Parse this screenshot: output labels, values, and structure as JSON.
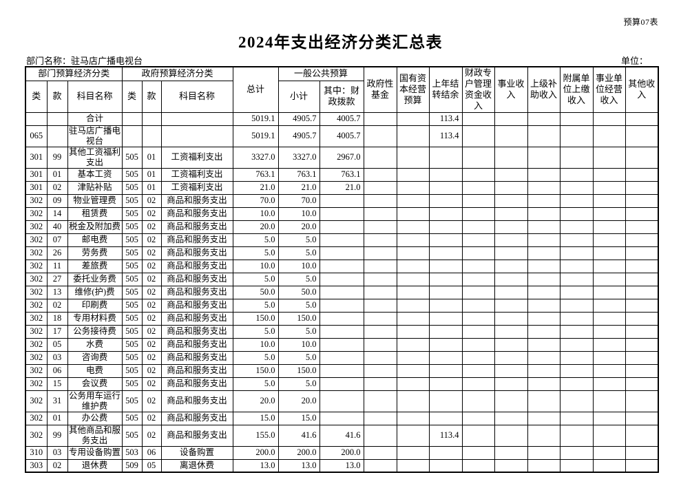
{
  "page": {
    "table_code": "预算07表",
    "title": "2024年支出经济分类汇总表",
    "department": "部门名称：驻马店广播电视台",
    "unit_label": "单位："
  },
  "table": {
    "group_headers": {
      "dept_class": "部门预算经济分类",
      "gov_class": "政府预算经济分类",
      "total": "总计",
      "general_public_budget": "一般公共预算"
    },
    "sub_headers": [
      "类",
      "款",
      "科目名称",
      "类",
      "款",
      "科目名称",
      "小计",
      "其中：财政拨款"
    ],
    "right_headers": [
      "政府性基金",
      "国有资本经营预算",
      "上年结转结余",
      "财政专户管理资金收入",
      "事业收入",
      "上级补助收入",
      "附属单位上缴收入",
      "事业单位经营收入",
      "其他收入"
    ],
    "rows": [
      [
        "",
        "",
        "合计",
        "",
        "",
        "",
        "5019.1",
        "4905.7",
        "4005.7",
        "",
        "",
        "113.4",
        "",
        "",
        "",
        "",
        "",
        ""
      ],
      [
        "065",
        "",
        "驻马店广播电视台",
        "",
        "",
        "",
        "5019.1",
        "4905.7",
        "4005.7",
        "",
        "",
        "113.4",
        "",
        "",
        "",
        "",
        "",
        ""
      ],
      [
        "301",
        "99",
        "其他工资福利支出",
        "505",
        "01",
        "工资福利支出",
        "3327.0",
        "3327.0",
        "2967.0",
        "",
        "",
        "",
        "",
        "",
        "",
        "",
        "",
        ""
      ],
      [
        "301",
        "01",
        "基本工资",
        "505",
        "01",
        "工资福利支出",
        "763.1",
        "763.1",
        "763.1",
        "",
        "",
        "",
        "",
        "",
        "",
        "",
        "",
        ""
      ],
      [
        "301",
        "02",
        "津贴补贴",
        "505",
        "01",
        "工资福利支出",
        "21.0",
        "21.0",
        "21.0",
        "",
        "",
        "",
        "",
        "",
        "",
        "",
        "",
        ""
      ],
      [
        "302",
        "09",
        "物业管理费",
        "505",
        "02",
        "商品和服务支出",
        "70.0",
        "70.0",
        "",
        "",
        "",
        "",
        "",
        "",
        "",
        "",
        "",
        ""
      ],
      [
        "302",
        "14",
        "租赁费",
        "505",
        "02",
        "商品和服务支出",
        "10.0",
        "10.0",
        "",
        "",
        "",
        "",
        "",
        "",
        "",
        "",
        "",
        ""
      ],
      [
        "302",
        "40",
        "税金及附加费",
        "505",
        "02",
        "商品和服务支出",
        "20.0",
        "20.0",
        "",
        "",
        "",
        "",
        "",
        "",
        "",
        "",
        "",
        ""
      ],
      [
        "302",
        "07",
        "邮电费",
        "505",
        "02",
        "商品和服务支出",
        "5.0",
        "5.0",
        "",
        "",
        "",
        "",
        "",
        "",
        "",
        "",
        "",
        ""
      ],
      [
        "302",
        "26",
        "劳务费",
        "505",
        "02",
        "商品和服务支出",
        "5.0",
        "5.0",
        "",
        "",
        "",
        "",
        "",
        "",
        "",
        "",
        "",
        ""
      ],
      [
        "302",
        "11",
        "差旅费",
        "505",
        "02",
        "商品和服务支出",
        "10.0",
        "10.0",
        "",
        "",
        "",
        "",
        "",
        "",
        "",
        "",
        "",
        ""
      ],
      [
        "302",
        "27",
        "委托业务费",
        "505",
        "02",
        "商品和服务支出",
        "5.0",
        "5.0",
        "",
        "",
        "",
        "",
        "",
        "",
        "",
        "",
        "",
        ""
      ],
      [
        "302",
        "13",
        "维修(护)费",
        "505",
        "02",
        "商品和服务支出",
        "50.0",
        "50.0",
        "",
        "",
        "",
        "",
        "",
        "",
        "",
        "",
        "",
        ""
      ],
      [
        "302",
        "02",
        "印刷费",
        "505",
        "02",
        "商品和服务支出",
        "5.0",
        "5.0",
        "",
        "",
        "",
        "",
        "",
        "",
        "",
        "",
        "",
        ""
      ],
      [
        "302",
        "18",
        "专用材料费",
        "505",
        "02",
        "商品和服务支出",
        "150.0",
        "150.0",
        "",
        "",
        "",
        "",
        "",
        "",
        "",
        "",
        "",
        ""
      ],
      [
        "302",
        "17",
        "公务接待费",
        "505",
        "02",
        "商品和服务支出",
        "5.0",
        "5.0",
        "",
        "",
        "",
        "",
        "",
        "",
        "",
        "",
        "",
        ""
      ],
      [
        "302",
        "05",
        "水费",
        "505",
        "02",
        "商品和服务支出",
        "10.0",
        "10.0",
        "",
        "",
        "",
        "",
        "",
        "",
        "",
        "",
        "",
        ""
      ],
      [
        "302",
        "03",
        "咨询费",
        "505",
        "02",
        "商品和服务支出",
        "5.0",
        "5.0",
        "",
        "",
        "",
        "",
        "",
        "",
        "",
        "",
        "",
        ""
      ],
      [
        "302",
        "06",
        "电费",
        "505",
        "02",
        "商品和服务支出",
        "150.0",
        "150.0",
        "",
        "",
        "",
        "",
        "",
        "",
        "",
        "",
        "",
        ""
      ],
      [
        "302",
        "15",
        "会议费",
        "505",
        "02",
        "商品和服务支出",
        "5.0",
        "5.0",
        "",
        "",
        "",
        "",
        "",
        "",
        "",
        "",
        "",
        ""
      ],
      [
        "302",
        "31",
        "公务用车运行维护费",
        "505",
        "02",
        "商品和服务支出",
        "20.0",
        "20.0",
        "",
        "",
        "",
        "",
        "",
        "",
        "",
        "",
        "",
        ""
      ],
      [
        "302",
        "01",
        "办公费",
        "505",
        "02",
        "商品和服务支出",
        "15.0",
        "15.0",
        "",
        "",
        "",
        "",
        "",
        "",
        "",
        "",
        "",
        ""
      ],
      [
        "302",
        "99",
        "其他商品和服务支出",
        "505",
        "02",
        "商品和服务支出",
        "155.0",
        "41.6",
        "41.6",
        "",
        "",
        "113.4",
        "",
        "",
        "",
        "",
        "",
        ""
      ],
      [
        "310",
        "03",
        "专用设备购置",
        "503",
        "06",
        "设备购置",
        "200.0",
        "200.0",
        "200.0",
        "",
        "",
        "",
        "",
        "",
        "",
        "",
        "",
        ""
      ],
      [
        "303",
        "02",
        "退休费",
        "509",
        "05",
        "离退休费",
        "13.0",
        "13.0",
        "13.0",
        "",
        "",
        "",
        "",
        "",
        "",
        "",
        "",
        ""
      ]
    ]
  }
}
